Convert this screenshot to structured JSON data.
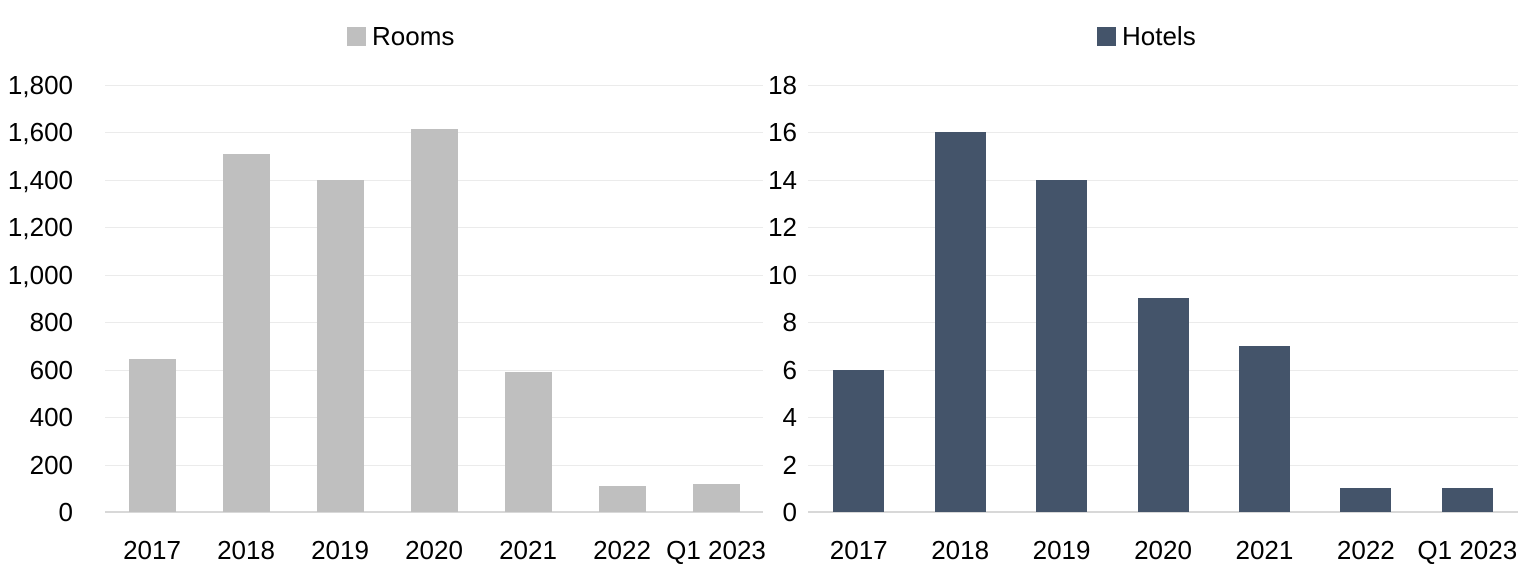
{
  "chart_data": [
    {
      "type": "bar",
      "panel": "left",
      "legend_label": "Rooms",
      "legend_position": "top-center",
      "bar_color": "#bfbfbf",
      "categories": [
        "2017",
        "2018",
        "2019",
        "2020",
        "2021",
        "2022",
        "Q1 2023"
      ],
      "values": [
        645,
        1510,
        1400,
        1615,
        590,
        110,
        120
      ],
      "ylim": [
        0,
        1800
      ],
      "ytick_step": 200,
      "ytick_labels_top_to_bottom": [
        "1,800",
        "1,600",
        "1,400",
        "1,200",
        "1,000",
        "800",
        "600",
        "400",
        "200",
        "0"
      ],
      "grid": true,
      "xlabel": "",
      "ylabel": ""
    },
    {
      "type": "bar",
      "panel": "right",
      "legend_label": "Hotels",
      "legend_position": "top-center",
      "bar_color": "#44546a",
      "categories": [
        "2017",
        "2018",
        "2019",
        "2020",
        "2021",
        "2022",
        "Q1 2023"
      ],
      "values": [
        6,
        16,
        14,
        9,
        7,
        1,
        1
      ],
      "ylim": [
        0,
        18
      ],
      "ytick_step": 2,
      "ytick_labels_top_to_bottom": [
        "18",
        "16",
        "14",
        "12",
        "10",
        "8",
        "6",
        "4",
        "2",
        "0"
      ],
      "grid": true,
      "xlabel": "",
      "ylabel": ""
    }
  ],
  "colors": {
    "rooms_bar": "#bfbfbf",
    "hotels_bar": "#44546a",
    "gridline": "#ebebeb",
    "axis_line": "#d8d8d8",
    "text": "#000000",
    "background": "#ffffff"
  }
}
